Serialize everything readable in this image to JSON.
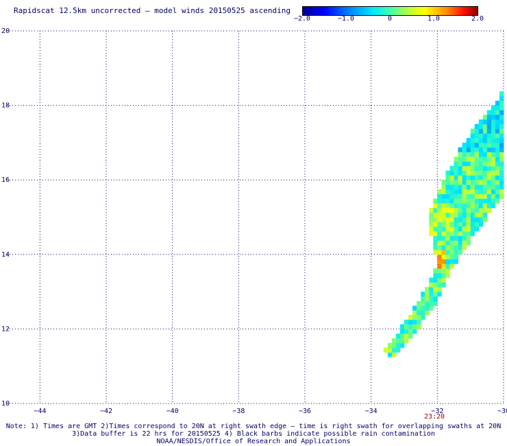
{
  "title": "Rapidscat 12.5km uncorrected — model winds 20150525 ascending",
  "colorbar": {
    "ticks": [
      "−2.0",
      "−1.0",
      "0",
      "1.0",
      "2.0"
    ],
    "range": [
      -2.0,
      2.0
    ]
  },
  "map": {
    "lon_range": [
      -45,
      -30
    ],
    "lat_range": [
      10,
      20
    ],
    "lon_ticks": [
      {
        "value": -44,
        "label": "−44"
      },
      {
        "value": -42,
        "label": "−42"
      },
      {
        "value": -40,
        "label": "−40"
      },
      {
        "value": -38,
        "label": "−38"
      },
      {
        "value": -36,
        "label": "−36"
      },
      {
        "value": -34,
        "label": "−34"
      },
      {
        "value": -32,
        "label": "−32"
      },
      {
        "value": -30,
        "label": "−30"
      }
    ],
    "lat_ticks": [
      {
        "value": 20,
        "label": "20"
      },
      {
        "value": 18,
        "label": "18"
      },
      {
        "value": 16,
        "label": "16"
      },
      {
        "value": 14,
        "label": "14"
      },
      {
        "value": 12,
        "label": "12"
      },
      {
        "value": 10,
        "label": "10"
      }
    ],
    "swath_time": {
      "label": "23:20",
      "lon": -31.8
    },
    "swath_outline": [
      [
        -33.5,
        11.2
      ],
      [
        -33.3,
        11.2
      ],
      [
        -32.0,
        12.7
      ],
      [
        -31.6,
        13.5
      ],
      [
        -31.3,
        14.0
      ],
      [
        -30.5,
        15.0
      ],
      [
        -30.2,
        15.4
      ],
      [
        -30.0,
        15.5
      ],
      [
        -30.0,
        18.4
      ],
      [
        -30.4,
        17.9
      ],
      [
        -30.8,
        17.5
      ],
      [
        -31.2,
        17.0
      ],
      [
        -31.5,
        16.5
      ],
      [
        -31.8,
        16.0
      ],
      [
        -32.0,
        15.6
      ],
      [
        -32.3,
        15.0
      ],
      [
        -32.1,
        14.2
      ],
      [
        -32.0,
        13.8
      ],
      [
        -32.4,
        13.0
      ],
      [
        -32.8,
        12.4
      ],
      [
        -33.3,
        11.8
      ],
      [
        -33.6,
        11.5
      ]
    ]
  },
  "notes": [
    "Note: 1) Times are GMT 2)Times correspond to 20N at right swath edge — time is right swath for overlapping swaths at 20N",
    "3)Data buffer is 22 hrs for 20150525 4) Black barbs indicate possible rain contamination",
    "NOAA/NESDIS/Office of Research and Applications"
  ]
}
